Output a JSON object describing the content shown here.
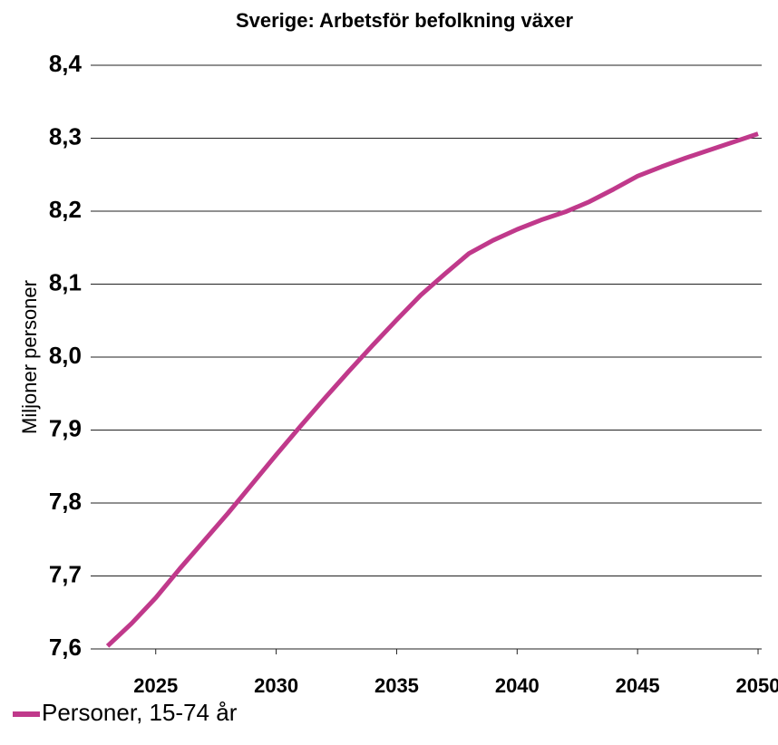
{
  "chart_data": {
    "type": "line",
    "title": "Sverige: Arbetsför befolkning växer",
    "y_label": "Miljoner personer",
    "x": [
      2023,
      2024,
      2025,
      2026,
      2027,
      2028,
      2029,
      2030,
      2031,
      2032,
      2033,
      2034,
      2035,
      2036,
      2037,
      2038,
      2039,
      2040,
      2041,
      2042,
      2043,
      2044,
      2045,
      2046,
      2047,
      2048,
      2049,
      2050
    ],
    "series": [
      {
        "name": "Personer, 15-74 år",
        "color": "#c0398b",
        "values": [
          7.604,
          7.635,
          7.67,
          7.71,
          7.748,
          7.786,
          7.826,
          7.866,
          7.905,
          7.943,
          7.98,
          8.016,
          8.051,
          8.085,
          8.114,
          8.142,
          8.16,
          8.175,
          8.188,
          8.199,
          8.213,
          8.23,
          8.248,
          8.261,
          8.273,
          8.284,
          8.295,
          8.306
        ]
      }
    ],
    "xlim": [
      2022.3,
      2050.15
    ],
    "xticks": [
      2025,
      2030,
      2035,
      2040,
      2045,
      2050
    ],
    "ylim": [
      7.6,
      8.4
    ],
    "yticks": [
      {
        "value": 7.6,
        "label": "7,6"
      },
      {
        "value": 7.7,
        "label": "7,7"
      },
      {
        "value": 7.8,
        "label": "7,8"
      },
      {
        "value": 7.9,
        "label": "7,9"
      },
      {
        "value": 8.0,
        "label": "8,0"
      },
      {
        "value": 8.1,
        "label": "8,1"
      },
      {
        "value": 8.2,
        "label": "8,2"
      },
      {
        "value": 8.3,
        "label": "8,3"
      },
      {
        "value": 8.4,
        "label": "8,4"
      }
    ],
    "grid": true,
    "legend": "bottom-left"
  }
}
